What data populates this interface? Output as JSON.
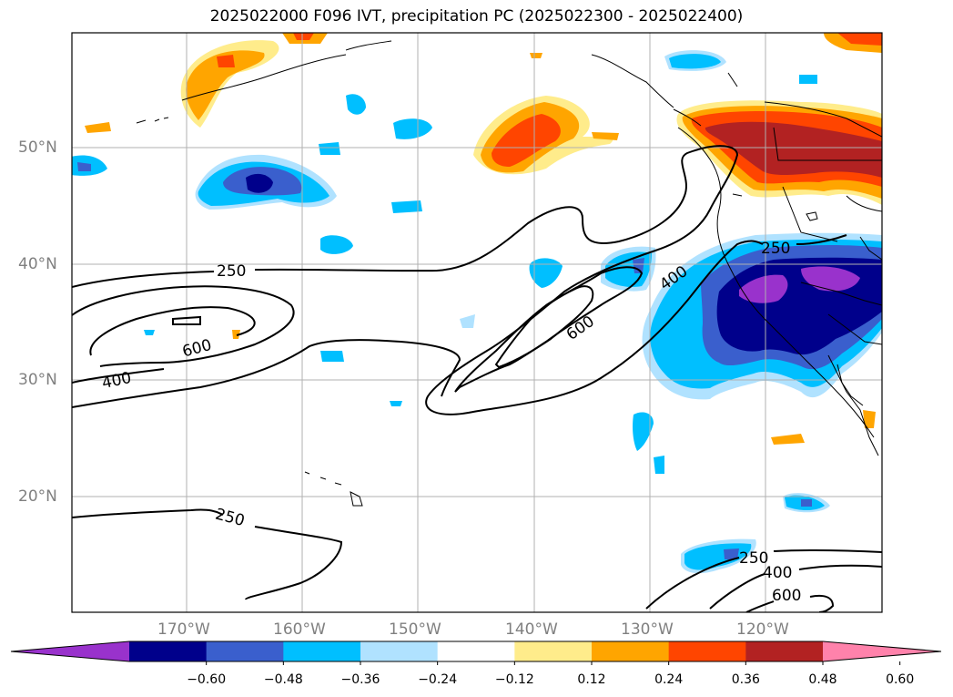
{
  "title": "2025022000 F096 IVT, precipitation PC (2025022300 - 2025022400)",
  "lat_labels": [
    "50°N",
    "40°N",
    "30°N",
    "20°N"
  ],
  "lon_labels": [
    "170°W",
    "160°W",
    "150°W",
    "140°W",
    "130°W",
    "120°W"
  ],
  "contour_labels": [
    "250",
    "600",
    "400",
    "250",
    "600",
    "400",
    "250",
    "250",
    "400",
    "600"
  ],
  "colorbar": {
    "ticks": [
      "−0.60",
      "−0.48",
      "−0.36",
      "−0.24",
      "−0.12",
      "0.12",
      "0.24",
      "0.36",
      "0.48",
      "0.60"
    ],
    "colors": [
      "#9932cc",
      "#00008b",
      "#3a5fcd",
      "#00bfff",
      "#b0e2ff",
      "#ffffff",
      "#ffec8b",
      "#ffa500",
      "#ff4500",
      "#b22222",
      "#ff82ab"
    ]
  }
}
